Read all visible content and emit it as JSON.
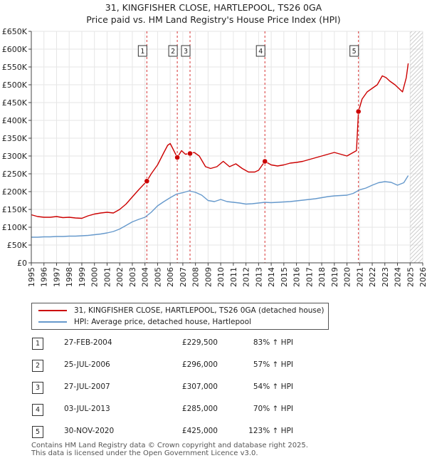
{
  "title_line1": "31, KINGFISHER CLOSE, HARTLEPOOL, TS26 0GA",
  "title_line2": "Price paid vs. HM Land Registry's House Price Index (HPI)",
  "colors": {
    "property": "#cc0000",
    "hpi": "#6699cc",
    "marker_line": "#cc0000",
    "future_hatch": "#bbbbbb",
    "plot_bg": "#ffffff",
    "grid": "#e6e6e6"
  },
  "legend": {
    "property_label": "31, KINGFISHER CLOSE, HARTLEPOOL, TS26 0GA (detached house)",
    "hpi_label": "HPI: Average price, detached house, Hartlepool"
  },
  "sales": [
    {
      "num": "1",
      "date": "27-FEB-2004",
      "price": "£229,500",
      "hpi": "83% ↑ HPI"
    },
    {
      "num": "2",
      "date": "25-JUL-2006",
      "price": "£296,000",
      "hpi": "57% ↑ HPI"
    },
    {
      "num": "3",
      "date": "27-JUL-2007",
      "price": "£307,000",
      "hpi": "54% ↑ HPI"
    },
    {
      "num": "4",
      "date": "03-JUL-2013",
      "price": "£285,000",
      "hpi": "70% ↑ HPI"
    },
    {
      "num": "5",
      "date": "30-NOV-2020",
      "price": "£425,000",
      "hpi": "123% ↑ HPI"
    }
  ],
  "footer_line1": "Contains HM Land Registry data © Crown copyright and database right 2025.",
  "footer_line2": "This data is licensed under the Open Government Licence v3.0.",
  "chart_data": {
    "type": "line",
    "xlim": [
      1995,
      2026
    ],
    "ylim": [
      0,
      650000
    ],
    "y_ticks": [
      0,
      50000,
      100000,
      150000,
      200000,
      250000,
      300000,
      350000,
      400000,
      450000,
      500000,
      550000,
      600000,
      650000
    ],
    "y_tick_labels": [
      "£0",
      "£50K",
      "£100K",
      "£150K",
      "£200K",
      "£250K",
      "£300K",
      "£350K",
      "£400K",
      "£450K",
      "£500K",
      "£550K",
      "£600K",
      "£650K"
    ],
    "x_ticks": [
      1995,
      1996,
      1997,
      1998,
      1999,
      2000,
      2001,
      2002,
      2003,
      2004,
      2005,
      2006,
      2007,
      2008,
      2009,
      2010,
      2011,
      2012,
      2013,
      2014,
      2015,
      2016,
      2017,
      2018,
      2019,
      2020,
      2021,
      2022,
      2023,
      2024,
      2025,
      2026
    ],
    "x_tick_labels": [
      "1995",
      "1996",
      "1997",
      "1998",
      "1999",
      "2000",
      "2001",
      "2002",
      "2003",
      "2004",
      "2005",
      "2006",
      "2007",
      "2008",
      "2009",
      "2010",
      "2011",
      "2012",
      "2013",
      "2014",
      "2015",
      "2016",
      "2017",
      "2018",
      "2019",
      "2020",
      "2021",
      "2022",
      "2023",
      "2024",
      "2025",
      "2026"
    ],
    "grid": true,
    "future_hatch_from": 2025.0,
    "series": [
      {
        "name": "31, KINGFISHER CLOSE, HARTLEPOOL, TS26 0GA (detached house)",
        "x": [
          1995.0,
          1995.5,
          1996.0,
          1996.5,
          1997.0,
          1997.5,
          1998.0,
          1998.5,
          1999.0,
          1999.5,
          2000.0,
          2000.5,
          2001.0,
          2001.5,
          2002.0,
          2002.5,
          2003.0,
          2003.5,
          2004.15,
          2004.5,
          2005.0,
          2005.5,
          2005.8,
          2006.0,
          2006.56,
          2006.9,
          2007.2,
          2007.56,
          2007.9,
          2008.3,
          2008.8,
          2009.2,
          2009.7,
          2010.2,
          2010.7,
          2011.2,
          2011.7,
          2012.2,
          2012.7,
          2013.0,
          2013.5,
          2014.0,
          2014.5,
          2015.0,
          2015.5,
          2016.0,
          2016.5,
          2017.0,
          2017.5,
          2018.0,
          2018.5,
          2019.0,
          2019.5,
          2020.0,
          2020.5,
          2020.75,
          2020.91,
          2021.2,
          2021.6,
          2022.0,
          2022.4,
          2022.8,
          2023.1,
          2023.4,
          2023.8,
          2024.1,
          2024.4,
          2024.7,
          2024.85
        ],
        "y": [
          135000,
          130000,
          128000,
          128000,
          130000,
          127000,
          128000,
          126000,
          125000,
          132000,
          137000,
          140000,
          142000,
          140000,
          150000,
          165000,
          185000,
          205000,
          229500,
          250000,
          275000,
          310000,
          330000,
          335000,
          296000,
          315000,
          305000,
          307000,
          310000,
          300000,
          270000,
          265000,
          270000,
          285000,
          270000,
          278000,
          265000,
          255000,
          255000,
          260000,
          285000,
          275000,
          272000,
          275000,
          280000,
          282000,
          285000,
          290000,
          295000,
          300000,
          305000,
          310000,
          305000,
          300000,
          310000,
          315000,
          425000,
          460000,
          480000,
          490000,
          500000,
          525000,
          520000,
          510000,
          500000,
          490000,
          480000,
          520000,
          560000
        ]
      },
      {
        "name": "HPI: Average price, detached house, Hartlepool",
        "x": [
          1995.0,
          1995.5,
          1996.0,
          1996.5,
          1997.0,
          1997.5,
          1998.0,
          1998.5,
          1999.0,
          1999.5,
          2000.0,
          2000.5,
          2001.0,
          2001.5,
          2002.0,
          2002.5,
          2003.0,
          2003.5,
          2004.0,
          2004.5,
          2005.0,
          2005.5,
          2006.0,
          2006.5,
          2007.0,
          2007.5,
          2008.0,
          2008.5,
          2009.0,
          2009.5,
          2010.0,
          2010.5,
          2011.0,
          2011.5,
          2012.0,
          2012.5,
          2013.0,
          2013.5,
          2014.0,
          2014.5,
          2015.0,
          2015.5,
          2016.0,
          2016.5,
          2017.0,
          2017.5,
          2018.0,
          2018.5,
          2019.0,
          2019.5,
          2020.0,
          2020.5,
          2021.0,
          2021.5,
          2022.0,
          2022.5,
          2023.0,
          2023.5,
          2024.0,
          2024.5,
          2024.85
        ],
        "y": [
          72000,
          72000,
          73000,
          73000,
          74000,
          74000,
          75000,
          75000,
          76000,
          77000,
          79000,
          81000,
          84000,
          88000,
          95000,
          105000,
          115000,
          122000,
          128000,
          142000,
          160000,
          172000,
          183000,
          193000,
          197000,
          202000,
          198000,
          190000,
          175000,
          172000,
          178000,
          172000,
          170000,
          168000,
          165000,
          166000,
          168000,
          170000,
          169000,
          170000,
          171000,
          172000,
          174000,
          176000,
          178000,
          180000,
          183000,
          186000,
          188000,
          189000,
          190000,
          195000,
          205000,
          210000,
          218000,
          225000,
          228000,
          226000,
          218000,
          225000,
          245000
        ]
      }
    ],
    "sale_markers": [
      {
        "label": "1",
        "x": 2004.15,
        "y": 229500
      },
      {
        "label": "2",
        "x": 2006.56,
        "y": 296000
      },
      {
        "label": "3",
        "x": 2007.57,
        "y": 307000
      },
      {
        "label": "4",
        "x": 2013.5,
        "y": 285000
      },
      {
        "label": "5",
        "x": 2020.91,
        "y": 425000
      }
    ]
  }
}
